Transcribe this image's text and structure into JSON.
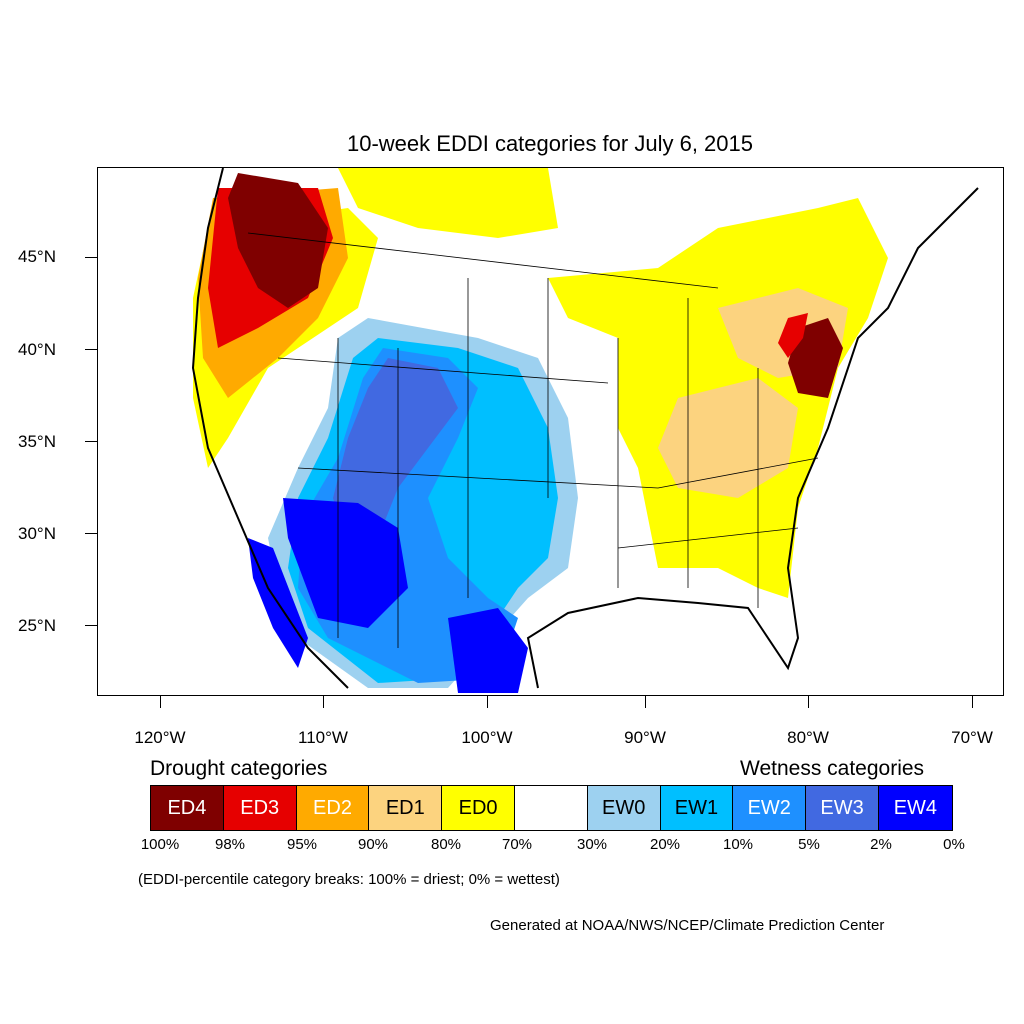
{
  "title": "10-week EDDI categories for July 6, 2015",
  "map": {
    "latitude_labels": [
      "45°N",
      "40°N",
      "35°N",
      "30°N",
      "25°N"
    ],
    "longitude_labels": [
      "120°W",
      "110°W",
      "100°W",
      "90°W",
      "80°W",
      "70°W"
    ],
    "regions": [
      {
        "category": "ED4",
        "area": "Pacific Northwest (Washington, northern Idaho)"
      },
      {
        "category": "ED4",
        "area": "Central Pennsylvania / western New York"
      },
      {
        "category": "EW4",
        "area": "Southern Arizona / northwestern Mexico"
      },
      {
        "category": "EW4",
        "area": "South Texas"
      },
      {
        "category": "EW2",
        "area": "Colorado, New Mexico, West Texas"
      },
      {
        "category": "EW1",
        "area": "Southern Plains (Texas, Oklahoma)"
      },
      {
        "category": "ED0",
        "area": "Ohio Valley, Southeast, Northeast"
      },
      {
        "category": "ED1",
        "area": "Kentucky / Tennessee"
      }
    ]
  },
  "legend": {
    "drought_heading": "Drought categories",
    "wetness_heading": "Wetness categories",
    "categories": [
      {
        "label": "ED4",
        "color": "#7f0000",
        "text_color": "#ffffff"
      },
      {
        "label": "ED3",
        "color": "#e60000",
        "text_color": "#ffffff"
      },
      {
        "label": "ED2",
        "color": "#ffaa00",
        "text_color": "#ffffff"
      },
      {
        "label": "ED1",
        "color": "#fcd37f",
        "text_color": "#000000"
      },
      {
        "label": "ED0",
        "color": "#ffff00",
        "text_color": "#000000"
      },
      {
        "label": "",
        "color": "#ffffff",
        "text_color": "#000000"
      },
      {
        "label": "EW0",
        "color": "#9dd1f0",
        "text_color": "#000000"
      },
      {
        "label": "EW1",
        "color": "#00bfff",
        "text_color": "#000000"
      },
      {
        "label": "EW2",
        "color": "#1e90ff",
        "text_color": "#ffffff"
      },
      {
        "label": "EW3",
        "color": "#4169e1",
        "text_color": "#ffffff"
      },
      {
        "label": "EW4",
        "color": "#0000ff",
        "text_color": "#ffffff"
      }
    ],
    "breaks": [
      "100%",
      "98%",
      "95%",
      "90%",
      "80%",
      "70%",
      "30%",
      "20%",
      "10%",
      "5%",
      "2%",
      "0%"
    ]
  },
  "note": "(EDDI-percentile category breaks: 100% = driest; 0% = wettest)",
  "credit": "Generated at NOAA/NWS/NCEP/Climate Prediction Center"
}
